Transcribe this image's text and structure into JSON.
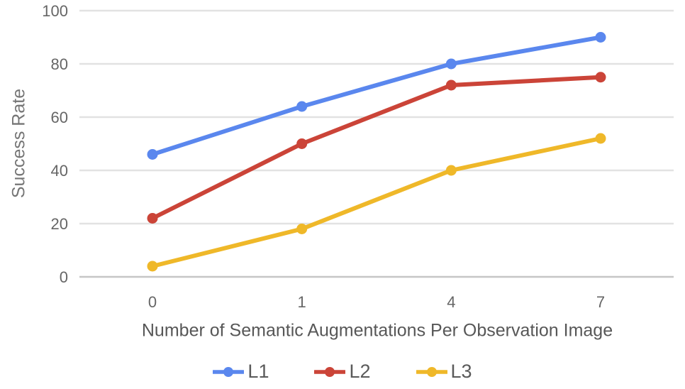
{
  "chart_data": {
    "type": "line",
    "categories": [
      "0",
      "1",
      "4",
      "7"
    ],
    "series": [
      {
        "name": "L1",
        "color": "#5A87EE",
        "values": [
          46,
          64,
          80,
          90
        ]
      },
      {
        "name": "L2",
        "color": "#CB4438",
        "values": [
          22,
          50,
          72,
          75
        ]
      },
      {
        "name": "L3",
        "color": "#EFB829",
        "values": [
          4,
          18,
          40,
          52
        ]
      }
    ],
    "title": "",
    "xlabel": "Number of Semantic Augmentations Per Observation Image",
    "ylabel": "Success Rate",
    "ylim": [
      0,
      100
    ],
    "yticks": [
      0,
      20,
      40,
      60,
      80,
      100
    ],
    "grid": "horizontal",
    "legend_position": "bottom"
  },
  "colors": {
    "background": "#FFFFFF",
    "gridline": "#E2E2E2",
    "baseline": "#C6C6C6",
    "tick_label": "#666666",
    "x_axis_title": "#575757",
    "y_axis_title": "#757575",
    "legend_label": "#5A5A5A"
  }
}
